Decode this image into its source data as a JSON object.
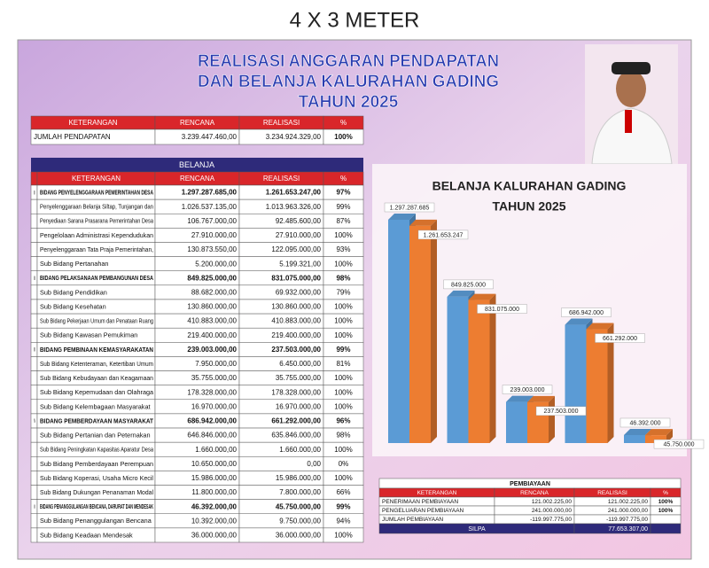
{
  "header": "4 X 3 METER",
  "title": [
    "REALISASI ANGGARAN PENDAPATAN",
    "DAN BELANJA KALURAHAN GADING",
    "TAHUN 2025"
  ],
  "pendapatan": {
    "columns": [
      "KETERANGAN",
      "RENCANA",
      "REALISASI",
      "%"
    ],
    "rows": [
      [
        "JUMLAH PENDAPATAN",
        "3.239.447.460,00",
        "3.234.924.329,00",
        "100%"
      ]
    ]
  },
  "belanja": {
    "title": "BELANJA",
    "columns": [
      "KETERANGAN",
      "RENCANA",
      "REALISASI",
      "%"
    ],
    "rows": [
      {
        "no": "I",
        "cells": [
          "BIDANG PENYELENGGARAAN PEMERINTAHAN DESA",
          "1.297.287.685,00",
          "1.261.653.247,00",
          "97%"
        ]
      },
      {
        "cells": [
          "Penyelenggaraan Belanja Siltap, Tunjangan dan",
          "1.026.537.135,00",
          "1.013.963.326,00",
          "99%"
        ]
      },
      {
        "cells": [
          "Penyediaan Sarana Prasarana Pemerintahan Desa",
          "106.767.000,00",
          "92.485.600,00",
          "87%"
        ]
      },
      {
        "cells": [
          "Pengelolaan Administrasi Kependudukan",
          "27.910.000,00",
          "27.910.000,00",
          "100%"
        ]
      },
      {
        "cells": [
          "Penyelenggaraan Tata Praja Pemerintahan,",
          "130.873.550,00",
          "122.095.000,00",
          "93%"
        ]
      },
      {
        "cells": [
          "Sub Bidang Pertanahan",
          "5.200.000,00",
          "5.199.321,00",
          "100%"
        ]
      },
      {
        "no": "II",
        "cells": [
          "BIDANG PELAKSANAAN PEMBANGUNAN DESA",
          "849.825.000,00",
          "831.075.000,00",
          "98%"
        ]
      },
      {
        "cells": [
          "Sub Bidang Pendidikan",
          "88.682.000,00",
          "69.932.000,00",
          "79%"
        ]
      },
      {
        "cells": [
          "Sub Bidang Kesehatan",
          "130.860.000,00",
          "130.860.000,00",
          "100%"
        ]
      },
      {
        "cells": [
          "Sub Bidang Pekerjaan Umum dan Penataan Ruang",
          "410.883.000,00",
          "410.883.000,00",
          "100%"
        ]
      },
      {
        "cells": [
          "Sub Bidang Kawasan Pemukiman",
          "219.400.000,00",
          "219.400.000,00",
          "100%"
        ]
      },
      {
        "no": "III",
        "cells": [
          "BIDANG PEMBINAAN KEMASYARAKATAN",
          "239.003.000,00",
          "237.503.000,00",
          "99%"
        ]
      },
      {
        "cells": [
          "Sub Bidang Ketenteraman, Ketertiban Umum",
          "7.950.000,00",
          "6.450.000,00",
          "81%"
        ]
      },
      {
        "cells": [
          "Sub Bidang Kebudayaan dan Keagamaan",
          "35.755.000,00",
          "35.755.000,00",
          "100%"
        ]
      },
      {
        "cells": [
          "Sub Bidang Kepemudaan dan Olahraga",
          "178.328.000,00",
          "178.328.000,00",
          "100%"
        ]
      },
      {
        "cells": [
          "Sub Bidang Kelembagaan Masyarakat",
          "16.970.000,00",
          "16.970.000,00",
          "100%"
        ]
      },
      {
        "no": "IV",
        "cells": [
          "BIDANG PEMBERDAYAAN MASYARAKAT",
          "686.942.000,00",
          "661.292.000,00",
          "96%"
        ]
      },
      {
        "cells": [
          "Sub Bidang Pertanian dan Peternakan",
          "646.846.000,00",
          "635.846.000,00",
          "98%"
        ]
      },
      {
        "cells": [
          "Sub Bidang Peningkatan Kapasitas Aparatur Desa",
          "1.660.000,00",
          "1.660.000,00",
          "100%"
        ]
      },
      {
        "cells": [
          "Sub Bidang Pemberdayaan Perempuan",
          "10.650.000,00",
          "0,00",
          "0%"
        ]
      },
      {
        "cells": [
          "Sub Bidang Koperasi, Usaha Micro Kecil",
          "15.986.000,00",
          "15.986.000,00",
          "100%"
        ]
      },
      {
        "cells": [
          "Sub Bidang Dukungan Penanaman Modal",
          "11.800.000,00",
          "7.800.000,00",
          "66%"
        ]
      },
      {
        "no": "V",
        "cells": [
          "BIDANG PENANGGULANGAN BENCANA, DARURAT DAN MENDESAK",
          "46.392.000,00",
          "45.750.000,00",
          "99%"
        ]
      },
      {
        "cells": [
          "Sub Bidang Penanggulangan Bencana",
          "10.392.000,00",
          "9.750.000,00",
          "94%"
        ]
      },
      {
        "cells": [
          "Sub Bidang Keadaan Mendesak",
          "36.000.000,00",
          "36.000.000,00",
          "100%"
        ]
      }
    ]
  },
  "chart": {
    "type": "bar",
    "title": [
      "BELANJA KALURAHAN GADING",
      "TAHUN 2025"
    ],
    "series": [
      {
        "color": "#5b9bd5",
        "values": [
          1297287685,
          849825000,
          239003000,
          686942000,
          46392000
        ],
        "value_labels": [
          "1.297.287.685",
          "849.825.000",
          "239.003.000",
          "686.942.000",
          "46.392.000"
        ]
      },
      {
        "color": "#ed7d31",
        "values": [
          1261653247,
          831075000,
          237503000,
          661292000,
          45750000
        ],
        "value_labels": [
          "1.261.653.247",
          "831.075.000",
          "237.503.000",
          "661.292.000",
          "45.750.000"
        ]
      }
    ]
  },
  "pembiayaan": {
    "title": "PEMBIAYAAN",
    "columns": [
      "KETERANGAN",
      "RENCANA",
      "REALISASI",
      "%"
    ],
    "rows": [
      [
        "PENERIMAAN PEMBIAYAAN",
        "121.002.225,00",
        "121.002.225,00",
        "100%"
      ],
      [
        "PENGELUARAN PEMBIAYAAN",
        "241.000.000,00",
        "241.000.000,00",
        "100%"
      ],
      [
        "JUMLAH PEMBIAYAAN",
        "-119.997.775,00",
        "-119.997.775,00"
      ]
    ],
    "silpa": {
      "label": "SILPA",
      "value": "77.653.307,00"
    }
  }
}
